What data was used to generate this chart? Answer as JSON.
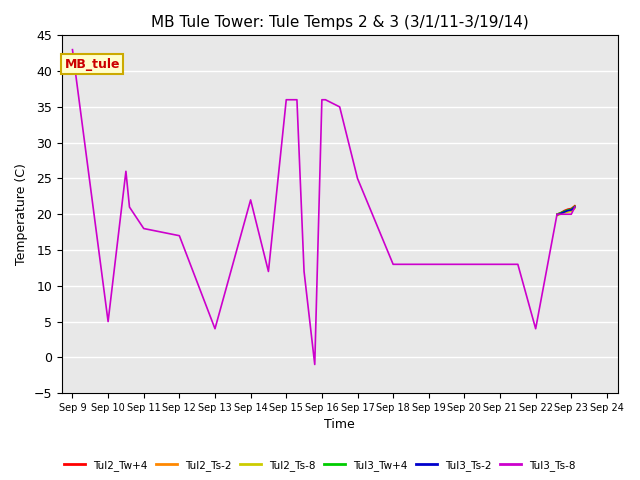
{
  "title": "MB Tule Tower: Tule Temps 2 & 3 (3/1/11-3/19/14)",
  "xlabel": "Time",
  "ylabel": "Temperature (C)",
  "ylim": [
    -5,
    45
  ],
  "yticks": [
    -5,
    0,
    5,
    10,
    15,
    20,
    25,
    30,
    35,
    40,
    45
  ],
  "annotation_text": "MB_tule",
  "annotation_color": "#cc0000",
  "annotation_bg": "#ffffcc",
  "annotation_border": "#ccaa00",
  "x_labels": [
    "Sep 9",
    "Sep 10",
    "Sep 11",
    "Sep 12",
    "Sep 13",
    "Sep 14",
    "Sep 15",
    "Sep 16",
    "Sep 17",
    "Sep 18",
    "Sep 19",
    "Sep 20",
    "Sep 21",
    "Sep 22",
    "Sep 23",
    "Sep 24"
  ],
  "series_order": [
    "Tul2_Tw+4",
    "Tul2_Ts-2",
    "Tul2_Ts-8",
    "Tul3_Tw+4",
    "Tul3_Ts-2",
    "Tul3_Ts-8"
  ],
  "series": {
    "Tul2_Tw+4": {
      "color": "#ff0000",
      "x": [
        13.6,
        13.7,
        13.8,
        13.9,
        14.0,
        14.05,
        14.1
      ],
      "y": [
        20.0,
        20.2,
        20.5,
        20.7,
        20.8,
        21.0,
        21.2
      ]
    },
    "Tul2_Ts-2": {
      "color": "#ff8800",
      "x": [
        13.6,
        13.7,
        13.8,
        13.9,
        14.0,
        14.05,
        14.1
      ],
      "y": [
        20.0,
        20.1,
        20.3,
        20.5,
        20.6,
        20.8,
        21.0
      ]
    },
    "Tul2_Ts-8": {
      "color": "#cccc00",
      "x": [
        13.6,
        13.7,
        13.8,
        13.9,
        14.0,
        14.05,
        14.1
      ],
      "y": [
        19.8,
        20.0,
        20.2,
        20.3,
        20.4,
        20.6,
        20.8
      ]
    },
    "Tul3_Tw+4": {
      "color": "#00cc00",
      "x": [
        13.6,
        13.7,
        13.8,
        13.9,
        14.0,
        14.05,
        14.1
      ],
      "y": [
        20.0,
        20.2,
        20.4,
        20.6,
        20.7,
        20.9,
        21.1
      ]
    },
    "Tul3_Ts-2": {
      "color": "#0000cc",
      "x": [
        13.6,
        13.7,
        13.8,
        13.9,
        14.0,
        14.05,
        14.1
      ],
      "y": [
        19.9,
        20.1,
        20.3,
        20.5,
        20.6,
        20.8,
        21.0
      ]
    },
    "Tul3_Ts-8": {
      "color": "#cc00cc",
      "x": [
        0,
        1,
        1.5,
        1.6,
        2,
        3,
        4,
        5,
        5.5,
        6,
        6.3,
        6.5,
        6.8,
        7.0,
        7.1,
        7.5,
        8,
        9,
        10,
        11,
        12,
        12.5,
        13,
        13.6,
        14.0,
        14.1
      ],
      "y": [
        43,
        5,
        26,
        21,
        18,
        17,
        4,
        22,
        12,
        36,
        36,
        12,
        -1,
        36,
        36,
        35,
        25,
        13,
        13,
        13,
        13,
        13,
        4,
        20,
        20,
        21
      ]
    }
  },
  "background_color": "#e8e8e8",
  "grid_color": "#ffffff",
  "title_fontsize": 11,
  "legend_entries": [
    {
      "label": "Tul2_Tw+4",
      "color": "#ff0000"
    },
    {
      "label": "Tul2_Ts-2",
      "color": "#ff8800"
    },
    {
      "label": "Tul2_Ts-8",
      "color": "#cccc00"
    },
    {
      "label": "Tul3_Tw+4",
      "color": "#00cc00"
    },
    {
      "label": "Tul3_Ts-2",
      "color": "#0000cc"
    },
    {
      "label": "Tul3_Ts-8",
      "color": "#cc00cc"
    }
  ]
}
